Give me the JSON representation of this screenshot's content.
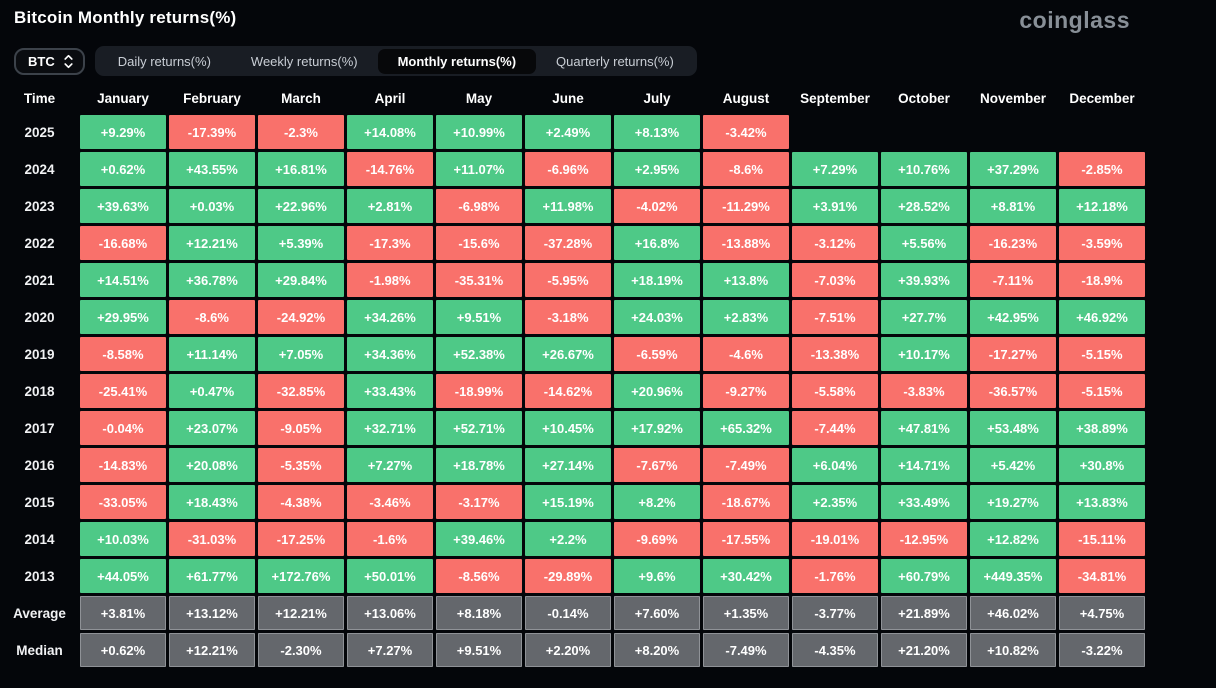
{
  "header": {
    "title": "Bitcoin Monthly returns(%)",
    "logo": "coinglass"
  },
  "controls": {
    "coin": "BTC",
    "tabs": [
      {
        "label": "Daily returns(%)",
        "active": false
      },
      {
        "label": "Weekly returns(%)",
        "active": false
      },
      {
        "label": "Monthly returns(%)",
        "active": true
      },
      {
        "label": "Quarterly returns(%)",
        "active": false
      }
    ]
  },
  "colors": {
    "positive": "#4ec987",
    "negative": "#f9716b",
    "stat": "#64676c",
    "background": "#04060a"
  },
  "chart_data": {
    "type": "heatmap",
    "title": "Bitcoin Monthly returns(%)",
    "time_column_header": "Time",
    "columns": [
      "January",
      "February",
      "March",
      "April",
      "May",
      "June",
      "July",
      "August",
      "September",
      "October",
      "November",
      "December"
    ],
    "rows": [
      {
        "label": "2025",
        "kind": "year",
        "values": [
          "+9.29%",
          "-17.39%",
          "-2.3%",
          "+14.08%",
          "+10.99%",
          "+2.49%",
          "+8.13%",
          "-3.42%",
          null,
          null,
          null,
          null
        ]
      },
      {
        "label": "2024",
        "kind": "year",
        "values": [
          "+0.62%",
          "+43.55%",
          "+16.81%",
          "-14.76%",
          "+11.07%",
          "-6.96%",
          "+2.95%",
          "-8.6%",
          "+7.29%",
          "+10.76%",
          "+37.29%",
          "-2.85%"
        ]
      },
      {
        "label": "2023",
        "kind": "year",
        "values": [
          "+39.63%",
          "+0.03%",
          "+22.96%",
          "+2.81%",
          "-6.98%",
          "+11.98%",
          "-4.02%",
          "-11.29%",
          "+3.91%",
          "+28.52%",
          "+8.81%",
          "+12.18%"
        ]
      },
      {
        "label": "2022",
        "kind": "year",
        "values": [
          "-16.68%",
          "+12.21%",
          "+5.39%",
          "-17.3%",
          "-15.6%",
          "-37.28%",
          "+16.8%",
          "-13.88%",
          "-3.12%",
          "+5.56%",
          "-16.23%",
          "-3.59%"
        ]
      },
      {
        "label": "2021",
        "kind": "year",
        "values": [
          "+14.51%",
          "+36.78%",
          "+29.84%",
          "-1.98%",
          "-35.31%",
          "-5.95%",
          "+18.19%",
          "+13.8%",
          "-7.03%",
          "+39.93%",
          "-7.11%",
          "-18.9%"
        ]
      },
      {
        "label": "2020",
        "kind": "year",
        "values": [
          "+29.95%",
          "-8.6%",
          "-24.92%",
          "+34.26%",
          "+9.51%",
          "-3.18%",
          "+24.03%",
          "+2.83%",
          "-7.51%",
          "+27.7%",
          "+42.95%",
          "+46.92%"
        ]
      },
      {
        "label": "2019",
        "kind": "year",
        "values": [
          "-8.58%",
          "+11.14%",
          "+7.05%",
          "+34.36%",
          "+52.38%",
          "+26.67%",
          "-6.59%",
          "-4.6%",
          "-13.38%",
          "+10.17%",
          "-17.27%",
          "-5.15%"
        ]
      },
      {
        "label": "2018",
        "kind": "year",
        "values": [
          "-25.41%",
          "+0.47%",
          "-32.85%",
          "+33.43%",
          "-18.99%",
          "-14.62%",
          "+20.96%",
          "-9.27%",
          "-5.58%",
          "-3.83%",
          "-36.57%",
          "-5.15%"
        ]
      },
      {
        "label": "2017",
        "kind": "year",
        "values": [
          "-0.04%",
          "+23.07%",
          "-9.05%",
          "+32.71%",
          "+52.71%",
          "+10.45%",
          "+17.92%",
          "+65.32%",
          "-7.44%",
          "+47.81%",
          "+53.48%",
          "+38.89%"
        ]
      },
      {
        "label": "2016",
        "kind": "year",
        "values": [
          "-14.83%",
          "+20.08%",
          "-5.35%",
          "+7.27%",
          "+18.78%",
          "+27.14%",
          "-7.67%",
          "-7.49%",
          "+6.04%",
          "+14.71%",
          "+5.42%",
          "+30.8%"
        ]
      },
      {
        "label": "2015",
        "kind": "year",
        "values": [
          "-33.05%",
          "+18.43%",
          "-4.38%",
          "-3.46%",
          "-3.17%",
          "+15.19%",
          "+8.2%",
          "-18.67%",
          "+2.35%",
          "+33.49%",
          "+19.27%",
          "+13.83%"
        ]
      },
      {
        "label": "2014",
        "kind": "year",
        "values": [
          "+10.03%",
          "-31.03%",
          "-17.25%",
          "-1.6%",
          "+39.46%",
          "+2.2%",
          "-9.69%",
          "-17.55%",
          "-19.01%",
          "-12.95%",
          "+12.82%",
          "-15.11%"
        ]
      },
      {
        "label": "2013",
        "kind": "year",
        "values": [
          "+44.05%",
          "+61.77%",
          "+172.76%",
          "+50.01%",
          "-8.56%",
          "-29.89%",
          "+9.6%",
          "+30.42%",
          "-1.76%",
          "+60.79%",
          "+449.35%",
          "-34.81%"
        ]
      },
      {
        "label": "Average",
        "kind": "stat",
        "values": [
          "+3.81%",
          "+13.12%",
          "+12.21%",
          "+13.06%",
          "+8.18%",
          "-0.14%",
          "+7.60%",
          "+1.35%",
          "-3.77%",
          "+21.89%",
          "+46.02%",
          "+4.75%"
        ]
      },
      {
        "label": "Median",
        "kind": "stat",
        "values": [
          "+0.62%",
          "+12.21%",
          "-2.30%",
          "+7.27%",
          "+9.51%",
          "+2.20%",
          "+8.20%",
          "-7.49%",
          "-4.35%",
          "+21.20%",
          "+10.82%",
          "-3.22%"
        ]
      }
    ]
  }
}
